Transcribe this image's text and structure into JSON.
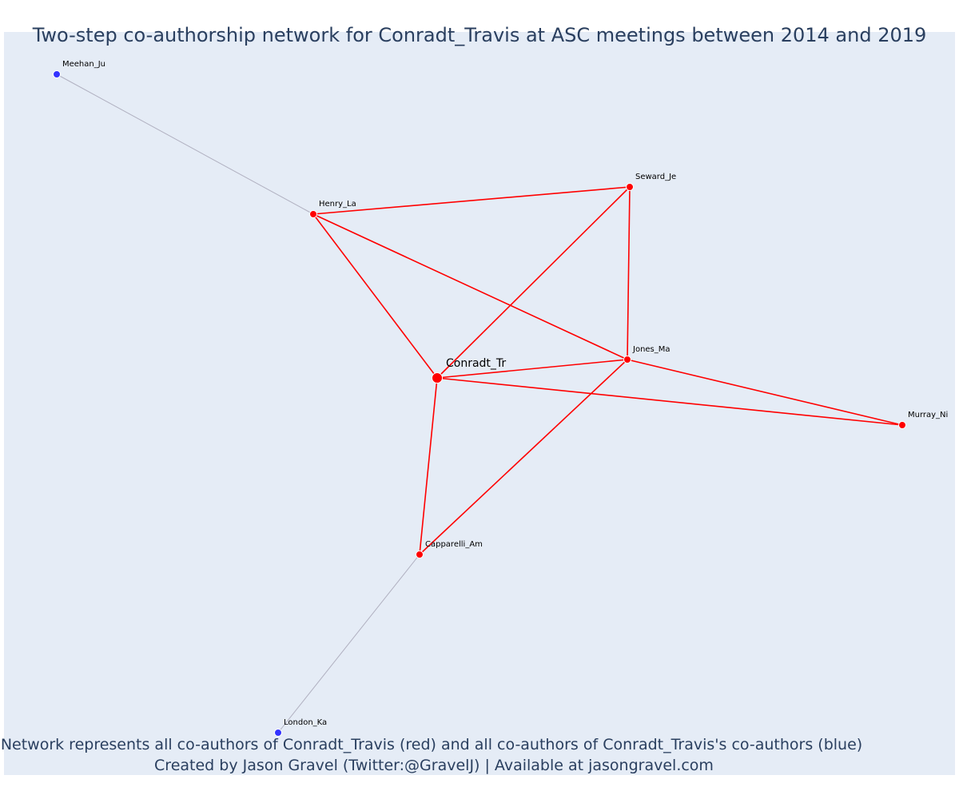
{
  "figure": {
    "title": "Two-step co-authorship network for Conradt_Travis at ASC meetings between 2014 and 2019",
    "caption_line1": "Network represents all co-authors of Conradt_Travis (red) and all co-authors of Conradt_Travis's co-authors (blue)",
    "caption_line2": "Created by Jason Gravel (Twitter:@GravelJ) | Available at jasongravel.com"
  },
  "colors": {
    "background": "#e5ecf6",
    "first_degree": "#ff0000",
    "second_degree": "#3333ff",
    "second_degree_edge": "#b0b0c0",
    "text": "#2a3f5f"
  },
  "network": {
    "focal_node": "Conradt_Tr",
    "nodes": [
      {
        "id": "Conradt_Tr",
        "label": "Conradt_Tr",
        "group": "focal"
      },
      {
        "id": "Henry_La",
        "label": "Henry_La",
        "group": "first_degree"
      },
      {
        "id": "Seward_Je",
        "label": "Seward_Je",
        "group": "first_degree"
      },
      {
        "id": "Jones_Ma",
        "label": "Jones_Ma",
        "group": "first_degree"
      },
      {
        "id": "Murray_Ni",
        "label": "Murray_Ni",
        "group": "first_degree"
      },
      {
        "id": "Capparelli_Am",
        "label": "Capparelli_Am",
        "group": "first_degree"
      },
      {
        "id": "Meehan_Ju",
        "label": "Meehan_Ju",
        "group": "second_degree"
      },
      {
        "id": "London_Ka",
        "label": "London_Ka",
        "group": "second_degree"
      }
    ],
    "edges": [
      {
        "source": "Conradt_Tr",
        "target": "Henry_La",
        "type": "first_degree"
      },
      {
        "source": "Conradt_Tr",
        "target": "Seward_Je",
        "type": "first_degree"
      },
      {
        "source": "Conradt_Tr",
        "target": "Jones_Ma",
        "type": "first_degree"
      },
      {
        "source": "Conradt_Tr",
        "target": "Murray_Ni",
        "type": "first_degree"
      },
      {
        "source": "Conradt_Tr",
        "target": "Capparelli_Am",
        "type": "first_degree"
      },
      {
        "source": "Henry_La",
        "target": "Seward_Je",
        "type": "first_degree"
      },
      {
        "source": "Henry_La",
        "target": "Jones_Ma",
        "type": "first_degree"
      },
      {
        "source": "Seward_Je",
        "target": "Jones_Ma",
        "type": "first_degree"
      },
      {
        "source": "Jones_Ma",
        "target": "Murray_Ni",
        "type": "first_degree"
      },
      {
        "source": "Jones_Ma",
        "target": "Capparelli_Am",
        "type": "first_degree"
      },
      {
        "source": "Meehan_Ju",
        "target": "Henry_La",
        "type": "second_degree"
      },
      {
        "source": "London_Ka",
        "target": "Capparelli_Am",
        "type": "second_degree"
      }
    ]
  }
}
